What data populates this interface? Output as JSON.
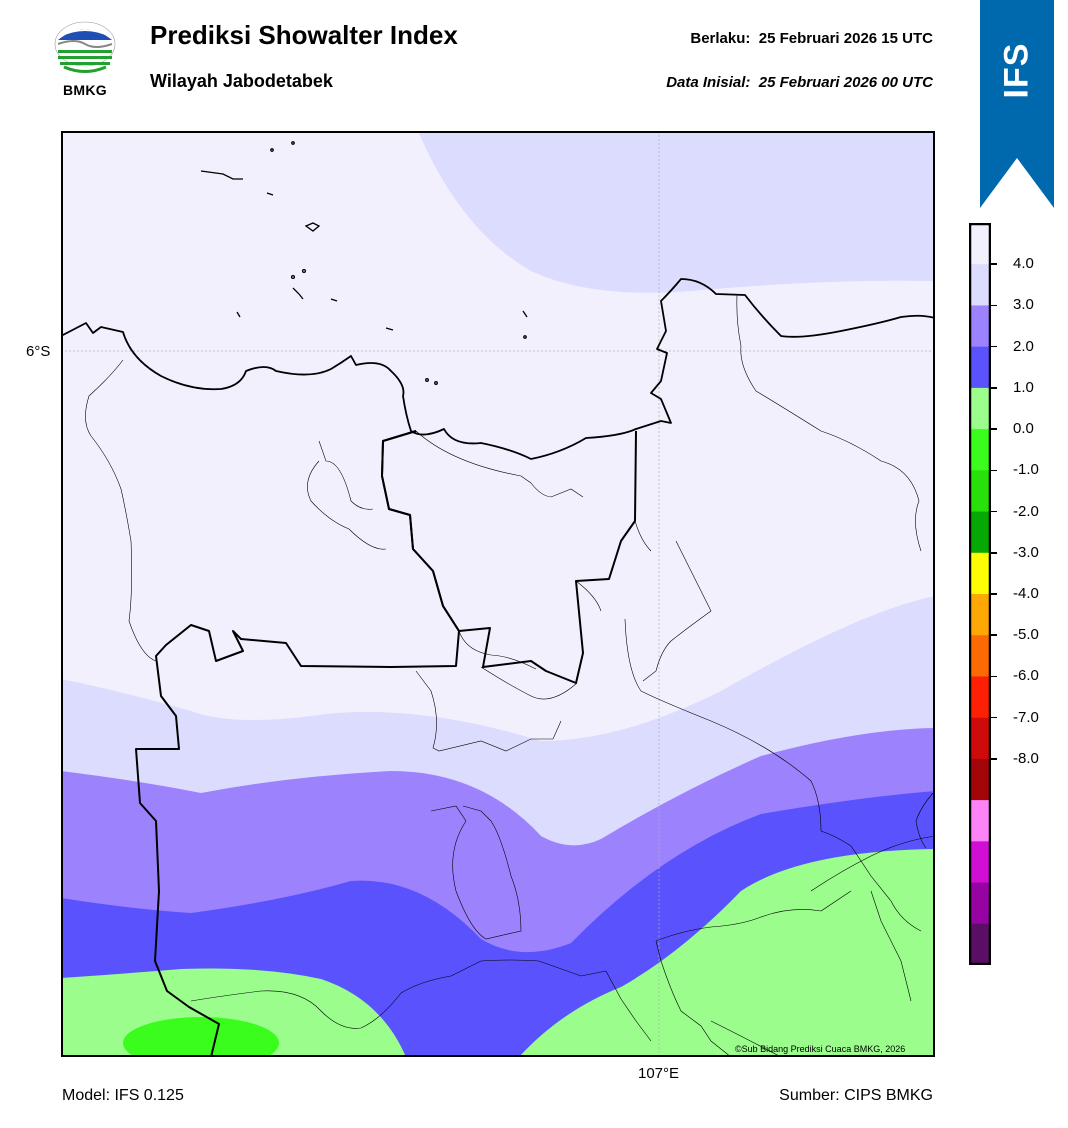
{
  "header": {
    "title": "Prediksi Showalter Index",
    "subtitle": "Wilayah Jabodetabek",
    "valid_label": "Berlaku:",
    "valid_time": "25 Februari 2026 15 UTC",
    "init_label": "Data Inisial:",
    "init_time": "25 Februari 2026 00 UTC"
  },
  "logo": {
    "text": "BMKG",
    "icon": "bmkg-logo"
  },
  "badge": {
    "text": "IFS",
    "color": "#0068AC",
    "icon": "ribbon-badge"
  },
  "map": {
    "lat_label": "6°S",
    "lon_label": "107°E",
    "credit": "©Sub Bidang Prediksi Cuaca BMKG, 2026"
  },
  "colorbar": {
    "ticks": [
      "4.0",
      "3.0",
      "2.0",
      "1.0",
      "0.0",
      "-1.0",
      "-2.0",
      "-3.0",
      "-4.0",
      "-5.0",
      "-6.0",
      "-7.0",
      "-8.0"
    ],
    "colors": [
      "#F2F0FD",
      "#DCDCFE",
      "#9D82FD",
      "#5A52FD",
      "#9AFD8C",
      "#3AFD1E",
      "#28E00A",
      "#06A904",
      "#FDFD04",
      "#FDA804",
      "#FD6A04",
      "#FD2004",
      "#CE0A0A",
      "#A30608",
      "#FD84F6",
      "#D10ED4",
      "#9603A2",
      "#5B0E65"
    ]
  },
  "footer": {
    "model": "Model: IFS 0.125",
    "source": "Sumber: CIPS BMKG"
  }
}
